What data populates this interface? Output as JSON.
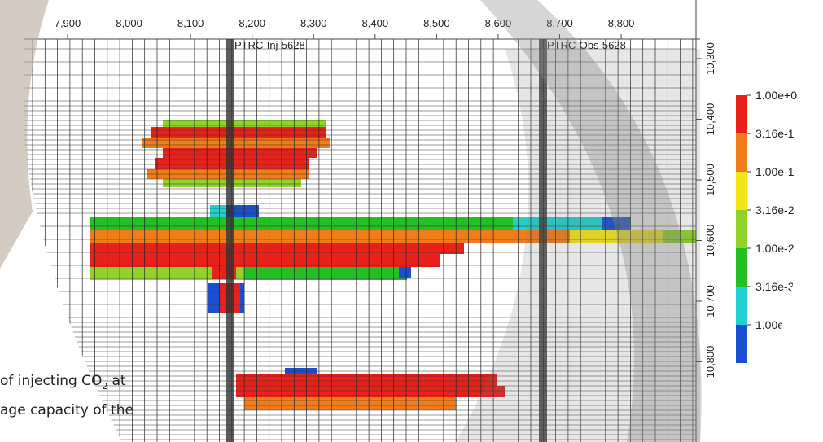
{
  "x_axis": {
    "ticks": [
      {
        "value": 7900,
        "label": "7,900"
      },
      {
        "value": 8000,
        "label": "8,000"
      },
      {
        "value": 8100,
        "label": "8,100"
      },
      {
        "value": 8200,
        "label": "8,200"
      },
      {
        "value": 8300,
        "label": "8,300"
      },
      {
        "value": 8400,
        "label": "8,400"
      },
      {
        "value": 8500,
        "label": "8,500"
      },
      {
        "value": 8600,
        "label": "8,600"
      },
      {
        "value": 8700,
        "label": "8,700"
      },
      {
        "value": 8800,
        "label": "8,800"
      }
    ]
  },
  "y_axis": {
    "ticks": [
      {
        "value": 10300,
        "label": "10,300"
      },
      {
        "value": 10400,
        "label": "10,400"
      },
      {
        "value": 10500,
        "label": "10,500"
      },
      {
        "value": 10600,
        "label": "10,600"
      },
      {
        "value": 10700,
        "label": "10,700"
      },
      {
        "value": 10800,
        "label": "10,800"
      }
    ]
  },
  "wells": [
    {
      "label": "PTRC-Inj-5628"
    },
    {
      "label": "PTRC-Obs-5628"
    }
  ],
  "colorbar": {
    "labels": [
      "1.00e+0",
      "3.16e-1",
      "1.00e-1",
      "3.16e-2",
      "1.00e-2",
      "3.16e-3",
      "1.00e"
    ]
  },
  "caption": {
    "line1": {
      "before": "of injecting CO",
      "sub": "2",
      "after": "at"
    },
    "line2": "age capacity of the"
  }
}
